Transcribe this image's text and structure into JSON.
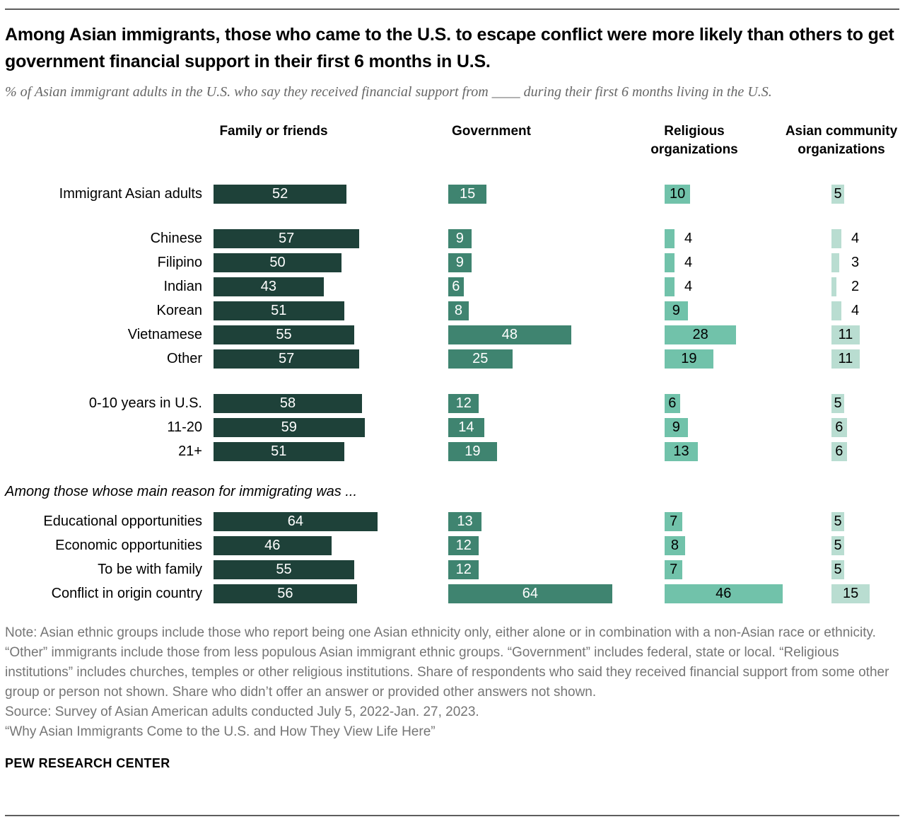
{
  "header": {
    "title": "Among Asian immigrants, those who came to the U.S. to escape conflict were more likely than others to get government financial support in their first 6 months in U.S.",
    "subtitle": "% of Asian immigrant adults in the U.S. who say they received financial support from ____ during their first 6 months living in the U.S."
  },
  "chart_data": {
    "type": "bar",
    "orientation": "horizontal",
    "value_unit": "percent",
    "xlim": [
      0,
      70
    ],
    "grid": false,
    "legend": "none",
    "columns": [
      "Family or friends",
      "Government",
      "Religious organizations",
      "Asian community organizations"
    ],
    "column_colors": [
      "#1e4139",
      "#3f8470",
      "#71c2aa",
      "#b9ddd1"
    ],
    "column_value_text_colors": [
      "#ffffff",
      "#ffffff",
      "#000000",
      "#000000"
    ],
    "section_label": "Among those whose main reason for immigrating was ...",
    "rows": [
      {
        "label": "Immigrant Asian adults",
        "values": [
          52,
          15,
          10,
          5
        ]
      },
      {
        "label": "Chinese",
        "values": [
          57,
          9,
          4,
          4
        ],
        "gap_before": true
      },
      {
        "label": "Filipino",
        "values": [
          50,
          9,
          4,
          3
        ]
      },
      {
        "label": "Indian",
        "values": [
          43,
          6,
          4,
          2
        ]
      },
      {
        "label": "Korean",
        "values": [
          51,
          8,
          9,
          4
        ]
      },
      {
        "label": "Vietnamese",
        "values": [
          55,
          48,
          28,
          11
        ]
      },
      {
        "label": "Other",
        "values": [
          57,
          25,
          19,
          11
        ]
      },
      {
        "label": "0-10 years in U.S.",
        "values": [
          58,
          12,
          6,
          5
        ],
        "gap_before": true
      },
      {
        "label": "11-20",
        "values": [
          59,
          14,
          9,
          6
        ]
      },
      {
        "label": "21+",
        "values": [
          51,
          19,
          13,
          6
        ]
      },
      {
        "label": "Educational opportunities",
        "values": [
          64,
          13,
          7,
          5
        ],
        "section_before": true
      },
      {
        "label": "Economic opportunities",
        "values": [
          46,
          12,
          8,
          5
        ]
      },
      {
        "label": "To be with family",
        "values": [
          55,
          12,
          7,
          5
        ]
      },
      {
        "label": "Conflict in origin country",
        "values": [
          56,
          64,
          46,
          15
        ]
      }
    ]
  },
  "footer": {
    "note": "Note: Asian ethnic groups include those who report being one Asian ethnicity only, either alone or in combination with a non-Asian race or ethnicity. “Other” immigrants include those from less populous Asian immigrant ethnic groups. “Government” includes federal, state or local. “Religious institutions” includes churches, temples or other religious institutions. Share of respondents who said they received financial support from some other group or person not shown. Share who didn’t offer an answer or provided other answers not shown.",
    "source": "Source: Survey of Asian American adults conducted July 5, 2022-Jan. 27, 2023.",
    "report": "“Why Asian Immigrants Come to the U.S. and How They View Life Here”",
    "brand": "PEW RESEARCH CENTER"
  }
}
